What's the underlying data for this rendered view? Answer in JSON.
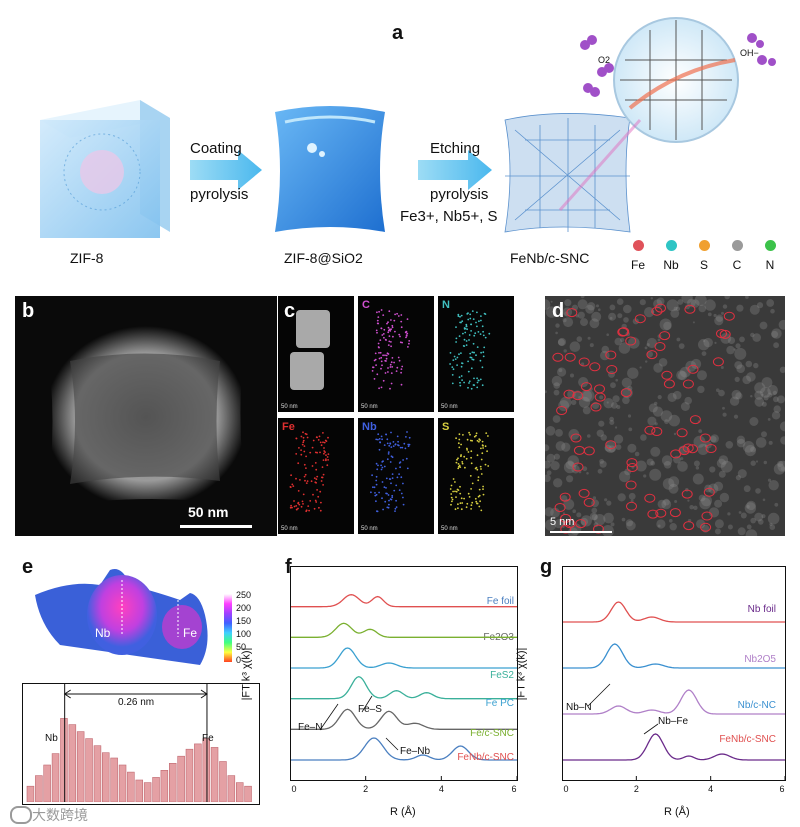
{
  "panels": {
    "a": {
      "letter": "a",
      "steps": [
        "ZIF-8",
        "ZIF-8@SiO2"
      ],
      "final_name": "FeNb/c-SNC",
      "arrow1": {
        "top": "Coating",
        "bottom": "pyrolysis"
      },
      "arrow2": {
        "top": "Etching",
        "bottom": "pyrolysis",
        "ions": "Fe3+, Nb5+, S"
      },
      "zoom_labels": {
        "o2": "O2",
        "oh": "OH−"
      },
      "legend": [
        {
          "label": "Fe",
          "color": "#e0525a"
        },
        {
          "label": "Nb",
          "color": "#2ec4c4"
        },
        {
          "label": "S",
          "color": "#f0a030"
        },
        {
          "label": "C",
          "color": "#9a9a9a"
        },
        {
          "label": "N",
          "color": "#3cc24a"
        }
      ]
    },
    "b": {
      "letter": "b",
      "scale": "50 nm"
    },
    "c": {
      "letter": "c",
      "channels": [
        {
          "label": "",
          "color": "#ffffff"
        },
        {
          "label": "C",
          "color": "#d050d0"
        },
        {
          "label": "N",
          "color": "#40c0c0"
        },
        {
          "label": "Fe",
          "color": "#e03030"
        },
        {
          "label": "Nb",
          "color": "#4060e0"
        },
        {
          "label": "S",
          "color": "#d8d040"
        }
      ],
      "scale": "50 nm"
    },
    "d": {
      "letter": "d",
      "scale": "5 nm"
    },
    "e": {
      "letter": "e",
      "peaks": {
        "nb": "Nb",
        "fe": "Fe"
      },
      "colorbar_ticks": [
        "250",
        "200",
        "150",
        "100",
        "50",
        "0"
      ],
      "distance": "0.26 nm",
      "bar_labels": {
        "nb": "Nb",
        "fe": "Fe"
      },
      "profile": [
        0.18,
        0.3,
        0.42,
        0.55,
        0.95,
        0.88,
        0.8,
        0.72,
        0.64,
        0.56,
        0.5,
        0.42,
        0.34,
        0.25,
        0.22,
        0.28,
        0.36,
        0.44,
        0.52,
        0.6,
        0.66,
        0.72,
        0.62,
        0.46,
        0.3,
        0.22,
        0.18
      ]
    },
    "f": {
      "letter": "f",
      "ylabel": "|FT k³ χ(k)|",
      "xlabel": "R (Å)",
      "xticks": [
        "0",
        "2",
        "4",
        "6"
      ],
      "series": [
        {
          "name": "Fe foil",
          "color": "#4a7fc0"
        },
        {
          "name": "Fe2O3",
          "color": "#666666"
        },
        {
          "name": "FeS2",
          "color": "#3ab09a"
        },
        {
          "name": "Fe PC",
          "color": "#3aa0d0"
        },
        {
          "name": "Fe/c-SNC",
          "color": "#7ab030"
        },
        {
          "name": "FeNb/c-SNC",
          "color": "#e05050"
        }
      ],
      "annotations": [
        "Fe–N",
        "Fe–S",
        "Fe–Nb"
      ]
    },
    "g": {
      "letter": "g",
      "ylabel": "|FT k³ χ(k)|",
      "xlabel": "R (Å)",
      "xticks": [
        "0",
        "2",
        "4",
        "6"
      ],
      "series": [
        {
          "name": "Nb foil",
          "color": "#6a2a8a"
        },
        {
          "name": "Nb2O5",
          "color": "#b080c8"
        },
        {
          "name": "Nb/c-NC",
          "color": "#3a90d0"
        },
        {
          "name": "FeNb/c-SNC",
          "color": "#e05050"
        }
      ],
      "annotations": [
        "Nb–N",
        "Nb–Fe"
      ]
    }
  },
  "watermark": "大数跨境"
}
